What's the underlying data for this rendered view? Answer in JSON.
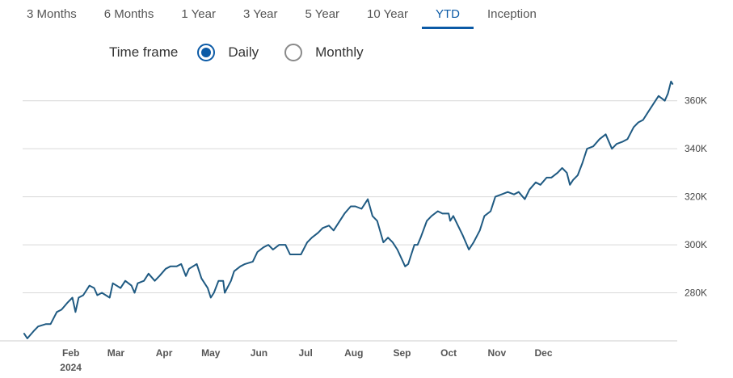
{
  "tabs": [
    "3 Months",
    "6 Months",
    "1 Year",
    "3 Year",
    "5 Year",
    "10 Year",
    "YTD",
    "Inception"
  ],
  "active_tab": "YTD",
  "timeframe": {
    "label": "Time frame",
    "options": [
      "Daily",
      "Monthly"
    ],
    "selected": "Daily"
  },
  "colors": {
    "line": "#1f5a82",
    "accent": "#0b5aa6",
    "grid": "#d9d9d9"
  },
  "chart_data": {
    "type": "line",
    "series": [
      {
        "points": [
          [
            "2024-01-02",
            263
          ],
          [
            "2024-01-04",
            261
          ],
          [
            "2024-01-08",
            264
          ],
          [
            "2024-01-11",
            266
          ],
          [
            "2024-01-16",
            267
          ],
          [
            "2024-01-19",
            267
          ],
          [
            "2024-01-23",
            272
          ],
          [
            "2024-01-26",
            273
          ],
          [
            "2024-01-30",
            276
          ],
          [
            "2024-02-02",
            278
          ],
          [
            "2024-02-04",
            272
          ],
          [
            "2024-02-06",
            278
          ],
          [
            "2024-02-09",
            279
          ],
          [
            "2024-02-13",
            283
          ],
          [
            "2024-02-16",
            282
          ],
          [
            "2024-02-18",
            279
          ],
          [
            "2024-02-21",
            280
          ],
          [
            "2024-02-26",
            278
          ],
          [
            "2024-02-28",
            284
          ],
          [
            "2024-03-04",
            282
          ],
          [
            "2024-03-07",
            285
          ],
          [
            "2024-03-11",
            283
          ],
          [
            "2024-03-13",
            280
          ],
          [
            "2024-03-15",
            284
          ],
          [
            "2024-03-19",
            285
          ],
          [
            "2024-03-22",
            288
          ],
          [
            "2024-03-26",
            285
          ],
          [
            "2024-03-29",
            287
          ],
          [
            "2024-04-02",
            290
          ],
          [
            "2024-04-05",
            291
          ],
          [
            "2024-04-09",
            291
          ],
          [
            "2024-04-12",
            292
          ],
          [
            "2024-04-15",
            287
          ],
          [
            "2024-04-17",
            290
          ],
          [
            "2024-04-22",
            292
          ],
          [
            "2024-04-25",
            286
          ],
          [
            "2024-04-29",
            282
          ],
          [
            "2024-05-01",
            278
          ],
          [
            "2024-05-03",
            280
          ],
          [
            "2024-05-06",
            285
          ],
          [
            "2024-05-09",
            285
          ],
          [
            "2024-05-10",
            280
          ],
          [
            "2024-05-14",
            285
          ],
          [
            "2024-05-16",
            289
          ],
          [
            "2024-05-20",
            291
          ],
          [
            "2024-05-23",
            292
          ],
          [
            "2024-05-28",
            293
          ],
          [
            "2024-05-31",
            297
          ],
          [
            "2024-06-04",
            299
          ],
          [
            "2024-06-07",
            300
          ],
          [
            "2024-06-10",
            298
          ],
          [
            "2024-06-14",
            300
          ],
          [
            "2024-06-18",
            300
          ],
          [
            "2024-06-21",
            296
          ],
          [
            "2024-06-25",
            296
          ],
          [
            "2024-06-28",
            296
          ],
          [
            "2024-07-02",
            301
          ],
          [
            "2024-07-05",
            303
          ],
          [
            "2024-07-09",
            305
          ],
          [
            "2024-07-12",
            307
          ],
          [
            "2024-07-16",
            308
          ],
          [
            "2024-07-19",
            306
          ],
          [
            "2024-07-23",
            310
          ],
          [
            "2024-07-26",
            313
          ],
          [
            "2024-07-30",
            316
          ],
          [
            "2024-08-02",
            316
          ],
          [
            "2024-08-06",
            315
          ],
          [
            "2024-08-08",
            317
          ],
          [
            "2024-08-10",
            319
          ],
          [
            "2024-08-13",
            312
          ],
          [
            "2024-08-16",
            310
          ],
          [
            "2024-08-20",
            301
          ],
          [
            "2024-08-23",
            303
          ],
          [
            "2024-08-26",
            301
          ],
          [
            "2024-08-29",
            298
          ],
          [
            "2024-09-03",
            291
          ],
          [
            "2024-09-05",
            292
          ],
          [
            "2024-09-09",
            300
          ],
          [
            "2024-09-11",
            300
          ],
          [
            "2024-09-13",
            303
          ],
          [
            "2024-09-17",
            310
          ],
          [
            "2024-09-20",
            312
          ],
          [
            "2024-09-24",
            314
          ],
          [
            "2024-09-27",
            313
          ],
          [
            "2024-10-01",
            313
          ],
          [
            "2024-10-02",
            310
          ],
          [
            "2024-10-04",
            312
          ],
          [
            "2024-10-07",
            308
          ],
          [
            "2024-10-10",
            304
          ],
          [
            "2024-10-14",
            298
          ],
          [
            "2024-10-17",
            301
          ],
          [
            "2024-10-21",
            306
          ],
          [
            "2024-10-24",
            312
          ],
          [
            "2024-10-28",
            314
          ],
          [
            "2024-10-31",
            320
          ],
          [
            "2024-11-04",
            321
          ],
          [
            "2024-11-08",
            322
          ],
          [
            "2024-11-12",
            321
          ],
          [
            "2024-11-15",
            322
          ],
          [
            "2024-11-19",
            319
          ],
          [
            "2024-11-22",
            323
          ],
          [
            "2024-11-26",
            326
          ],
          [
            "2024-11-29",
            325
          ],
          [
            "2024-12-03",
            328
          ],
          [
            "2024-12-06",
            328
          ],
          [
            "2024-12-10",
            330
          ],
          [
            "2024-12-13",
            332
          ],
          [
            "2024-12-16",
            330
          ],
          [
            "2024-12-18",
            325
          ],
          [
            "2024-12-20",
            327
          ],
          [
            "2024-12-23",
            329
          ],
          [
            "2024-12-26",
            334
          ],
          [
            "2024-12-29",
            340
          ],
          [
            "2025-01-02",
            341
          ],
          [
            "2025-01-06",
            344
          ],
          [
            "2025-01-10",
            346
          ],
          [
            "2025-01-14",
            340
          ],
          [
            "2025-01-17",
            342
          ],
          [
            "2025-01-21",
            343
          ],
          [
            "2025-01-24",
            344
          ],
          [
            "2025-01-28",
            349
          ],
          [
            "2025-01-31",
            351
          ],
          [
            "2025-02-03",
            352
          ],
          [
            "2025-02-06",
            355
          ],
          [
            "2025-02-10",
            359
          ],
          [
            "2025-02-13",
            362
          ],
          [
            "2025-02-17",
            360
          ],
          [
            "2025-02-19",
            363
          ],
          [
            "2025-02-21",
            368
          ],
          [
            "2025-02-22",
            367
          ]
        ]
      }
    ],
    "x_ticks": [
      "Feb",
      "Mar",
      "Apr",
      "May",
      "Jun",
      "Jul",
      "Aug",
      "Sep",
      "Oct",
      "Nov",
      "Dec"
    ],
    "x_year_label": "2024",
    "y_ticks": [
      "280K",
      "300K",
      "320K",
      "340K",
      "360K"
    ],
    "y_tick_values": [
      280,
      300,
      320,
      340,
      360
    ],
    "y_unit": "thousands",
    "ylim": [
      260,
      370
    ],
    "grid": "horizontal",
    "y_axis_side": "right"
  }
}
